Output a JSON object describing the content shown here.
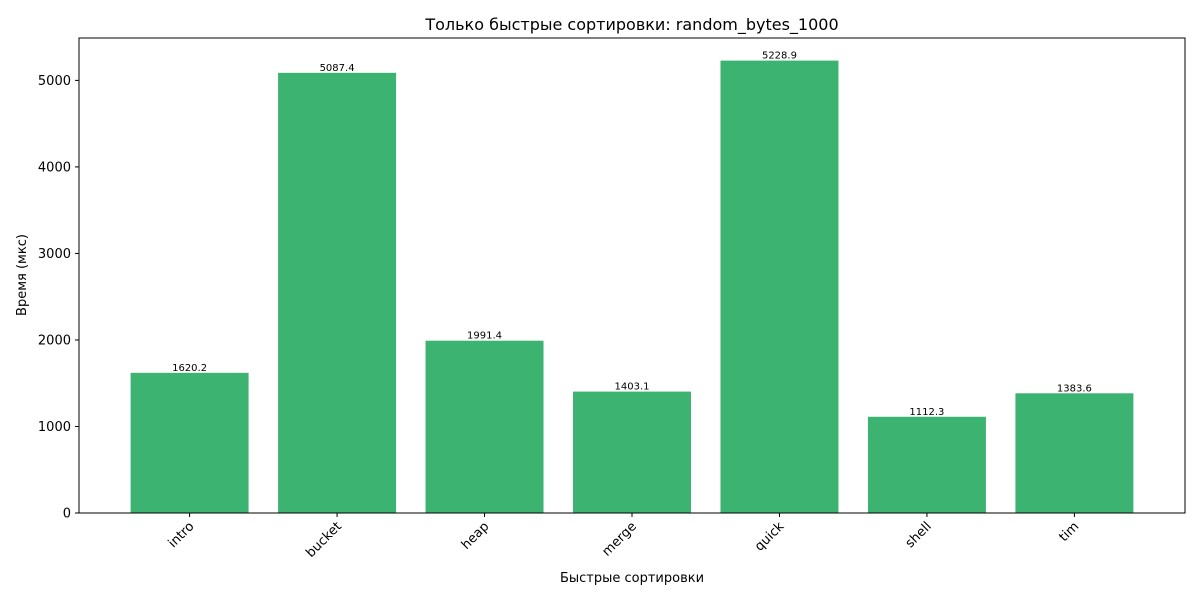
{
  "chart_data": {
    "type": "bar",
    "title": "Только быстрые сортировки: random_bytes_1000",
    "xlabel": "Быстрые сортировки",
    "ylabel": "Время (мкс)",
    "categories": [
      "intro",
      "bucket",
      "heap",
      "merge",
      "quick",
      "shell",
      "tim"
    ],
    "values": [
      1620.2,
      5087.4,
      1991.4,
      1403.1,
      5228.9,
      1112.3,
      1383.6
    ],
    "data_labels": [
      "1620.2",
      "5087.4",
      "1991.4",
      "1403.1",
      "5228.9",
      "1112.3",
      "1383.6"
    ],
    "ylim": [
      0,
      5490
    ],
    "yticks": [
      0,
      1000,
      2000,
      3000,
      4000,
      5000
    ],
    "ytick_labels": [
      "0",
      "1000",
      "2000",
      "3000",
      "4000",
      "5000"
    ],
    "bar_color": "#3cb371",
    "grid": false
  }
}
